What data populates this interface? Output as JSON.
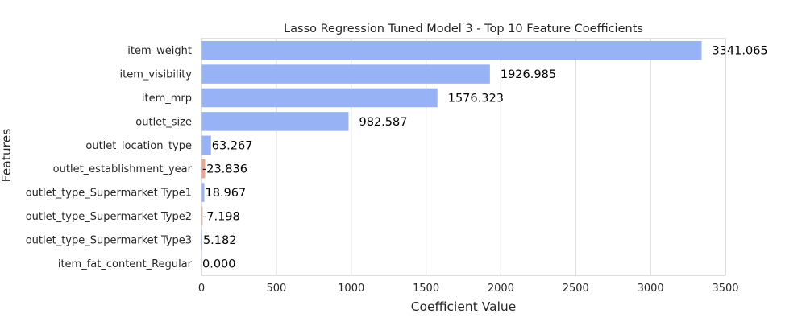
{
  "chart_data": {
    "type": "bar",
    "orientation": "horizontal",
    "title": "Lasso Regression Tuned Model 3 - Top 10 Feature Coefficients",
    "xlabel": "Coefficient Value",
    "ylabel": "Features",
    "xlim": [
      0,
      3500
    ],
    "xticks": [
      0,
      500,
      1000,
      1500,
      2000,
      2500,
      3000,
      3500
    ],
    "grid": "vertical",
    "colors": {
      "positive": "#98b3f5",
      "negative": "#f2a38a"
    },
    "categories": [
      "item_weight",
      "item_visibility",
      "item_mrp",
      "outlet_size",
      "outlet_location_type",
      "outlet_establishment_year",
      "outlet_type_Supermarket Type1",
      "outlet_type_Supermarket Type2",
      "outlet_type_Supermarket Type3",
      "item_fat_content_Regular"
    ],
    "values": [
      3341.065,
      1926.985,
      1576.323,
      982.587,
      63.267,
      -23.836,
      18.967,
      -7.198,
      5.182,
      0.0
    ],
    "data_labels": [
      "3341.065",
      "1926.985",
      "1576.323",
      "982.587",
      "63.267",
      "-23.836",
      "18.967",
      "-7.198",
      "5.182",
      "0.000"
    ]
  }
}
